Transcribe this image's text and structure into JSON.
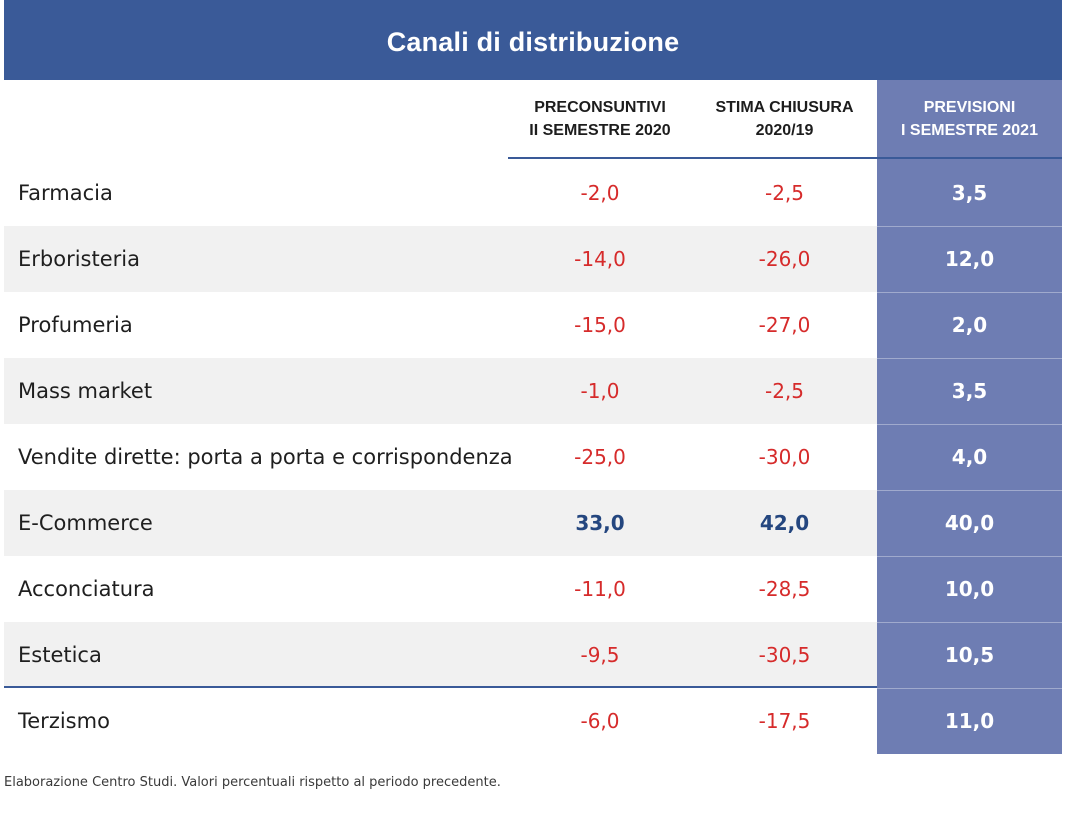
{
  "title": "Canali di distribuzione",
  "colors": {
    "header_bg": "#3a5a98",
    "projection_bg": "#6e7db3",
    "negative": "#d62b2b",
    "positive": "#24467f"
  },
  "columns": [
    {
      "line1": "PRECONSUNTIVI",
      "line2": "II SEMESTRE 2020"
    },
    {
      "line1": "STIMA CHIUSURA",
      "line2": "2020/19"
    },
    {
      "line1": "PREVISIONI",
      "line2": "I SEMESTRE 2021"
    }
  ],
  "rows": [
    {
      "label": "Farmacia",
      "preconsuntivi": "-2,0",
      "stima": "-2,5",
      "previsioni": "3,5"
    },
    {
      "label": "Erboristeria",
      "preconsuntivi": "-14,0",
      "stima": "-26,0",
      "previsioni": "12,0"
    },
    {
      "label": "Profumeria",
      "preconsuntivi": "-15,0",
      "stima": "-27,0",
      "previsioni": "2,0"
    },
    {
      "label": "Mass market",
      "preconsuntivi": "-1,0",
      "stima": "-2,5",
      "previsioni": "3,5"
    },
    {
      "label": "Vendite dirette: porta a porta e corrispondenza",
      "preconsuntivi": "-25,0",
      "stima": "-30,0",
      "previsioni": "4,0"
    },
    {
      "label": "E-Commerce",
      "preconsuntivi": "33,0",
      "stima": "42,0",
      "previsioni": "40,0"
    },
    {
      "label": "Acconciatura",
      "preconsuntivi": "-11,0",
      "stima": "-28,5",
      "previsioni": "10,0"
    },
    {
      "label": "Estetica",
      "preconsuntivi": "-9,5",
      "stima": "-30,5",
      "previsioni": "10,5"
    },
    {
      "label": "Terzismo",
      "preconsuntivi": "-6,0",
      "stima": "-17,5",
      "previsioni": "11,0"
    }
  ],
  "footnote": "Elaborazione Centro Studi. Valori percentuali rispetto al periodo precedente."
}
